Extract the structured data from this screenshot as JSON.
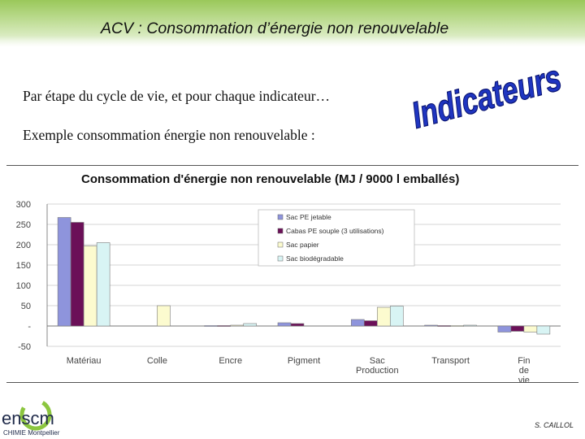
{
  "slide": {
    "title": "ACV : Consommation d’énergie non renouvelable",
    "line1": "Par étape du cycle de vie, et pour chaque indicateur…",
    "line2": "Exemple consommation énergie non renouvelable :",
    "wordart": "Indicateurs",
    "logo_main": "enscm",
    "logo_sub": "CHIMIE Montpellier",
    "author": "S. CAILLOL"
  },
  "colors": {
    "sac_pe_jetable": "#8e94dc",
    "cabas_pe_souple": "#6b1058",
    "sac_papier": "#fcfbcf",
    "sac_biodegradable": "#d8f4f4",
    "wordart_fill": "#1f35c0",
    "logo_green": "#8cc63f"
  },
  "chart_data": {
    "type": "bar",
    "title": "Consommation d'énergie non renouvelable (MJ / 9000 l emballés)",
    "categories": [
      "Matériau",
      "Colle",
      "Encre",
      "Pigment",
      "Sac Production",
      "Transport",
      "Fin de vie"
    ],
    "series": [
      {
        "name": "Sac PE jetable",
        "values": [
          267,
          0,
          1,
          8,
          16,
          2,
          -15
        ]
      },
      {
        "name": "Cabas PE souple (3 utilisations)",
        "values": [
          255,
          0,
          1,
          6,
          13,
          1,
          -13
        ]
      },
      {
        "name": "Sac papier",
        "values": [
          197,
          50,
          2,
          0,
          46,
          1,
          -15
        ]
      },
      {
        "name": "Sac biodégradable",
        "values": [
          205,
          0,
          6,
          0,
          49,
          2,
          -20
        ]
      }
    ],
    "yticks": [
      "300",
      "250",
      "200",
      "150",
      "100",
      "50",
      "-",
      "-50"
    ],
    "ylim": [
      -50,
      300
    ],
    "grid": true,
    "legend": "top-center"
  }
}
